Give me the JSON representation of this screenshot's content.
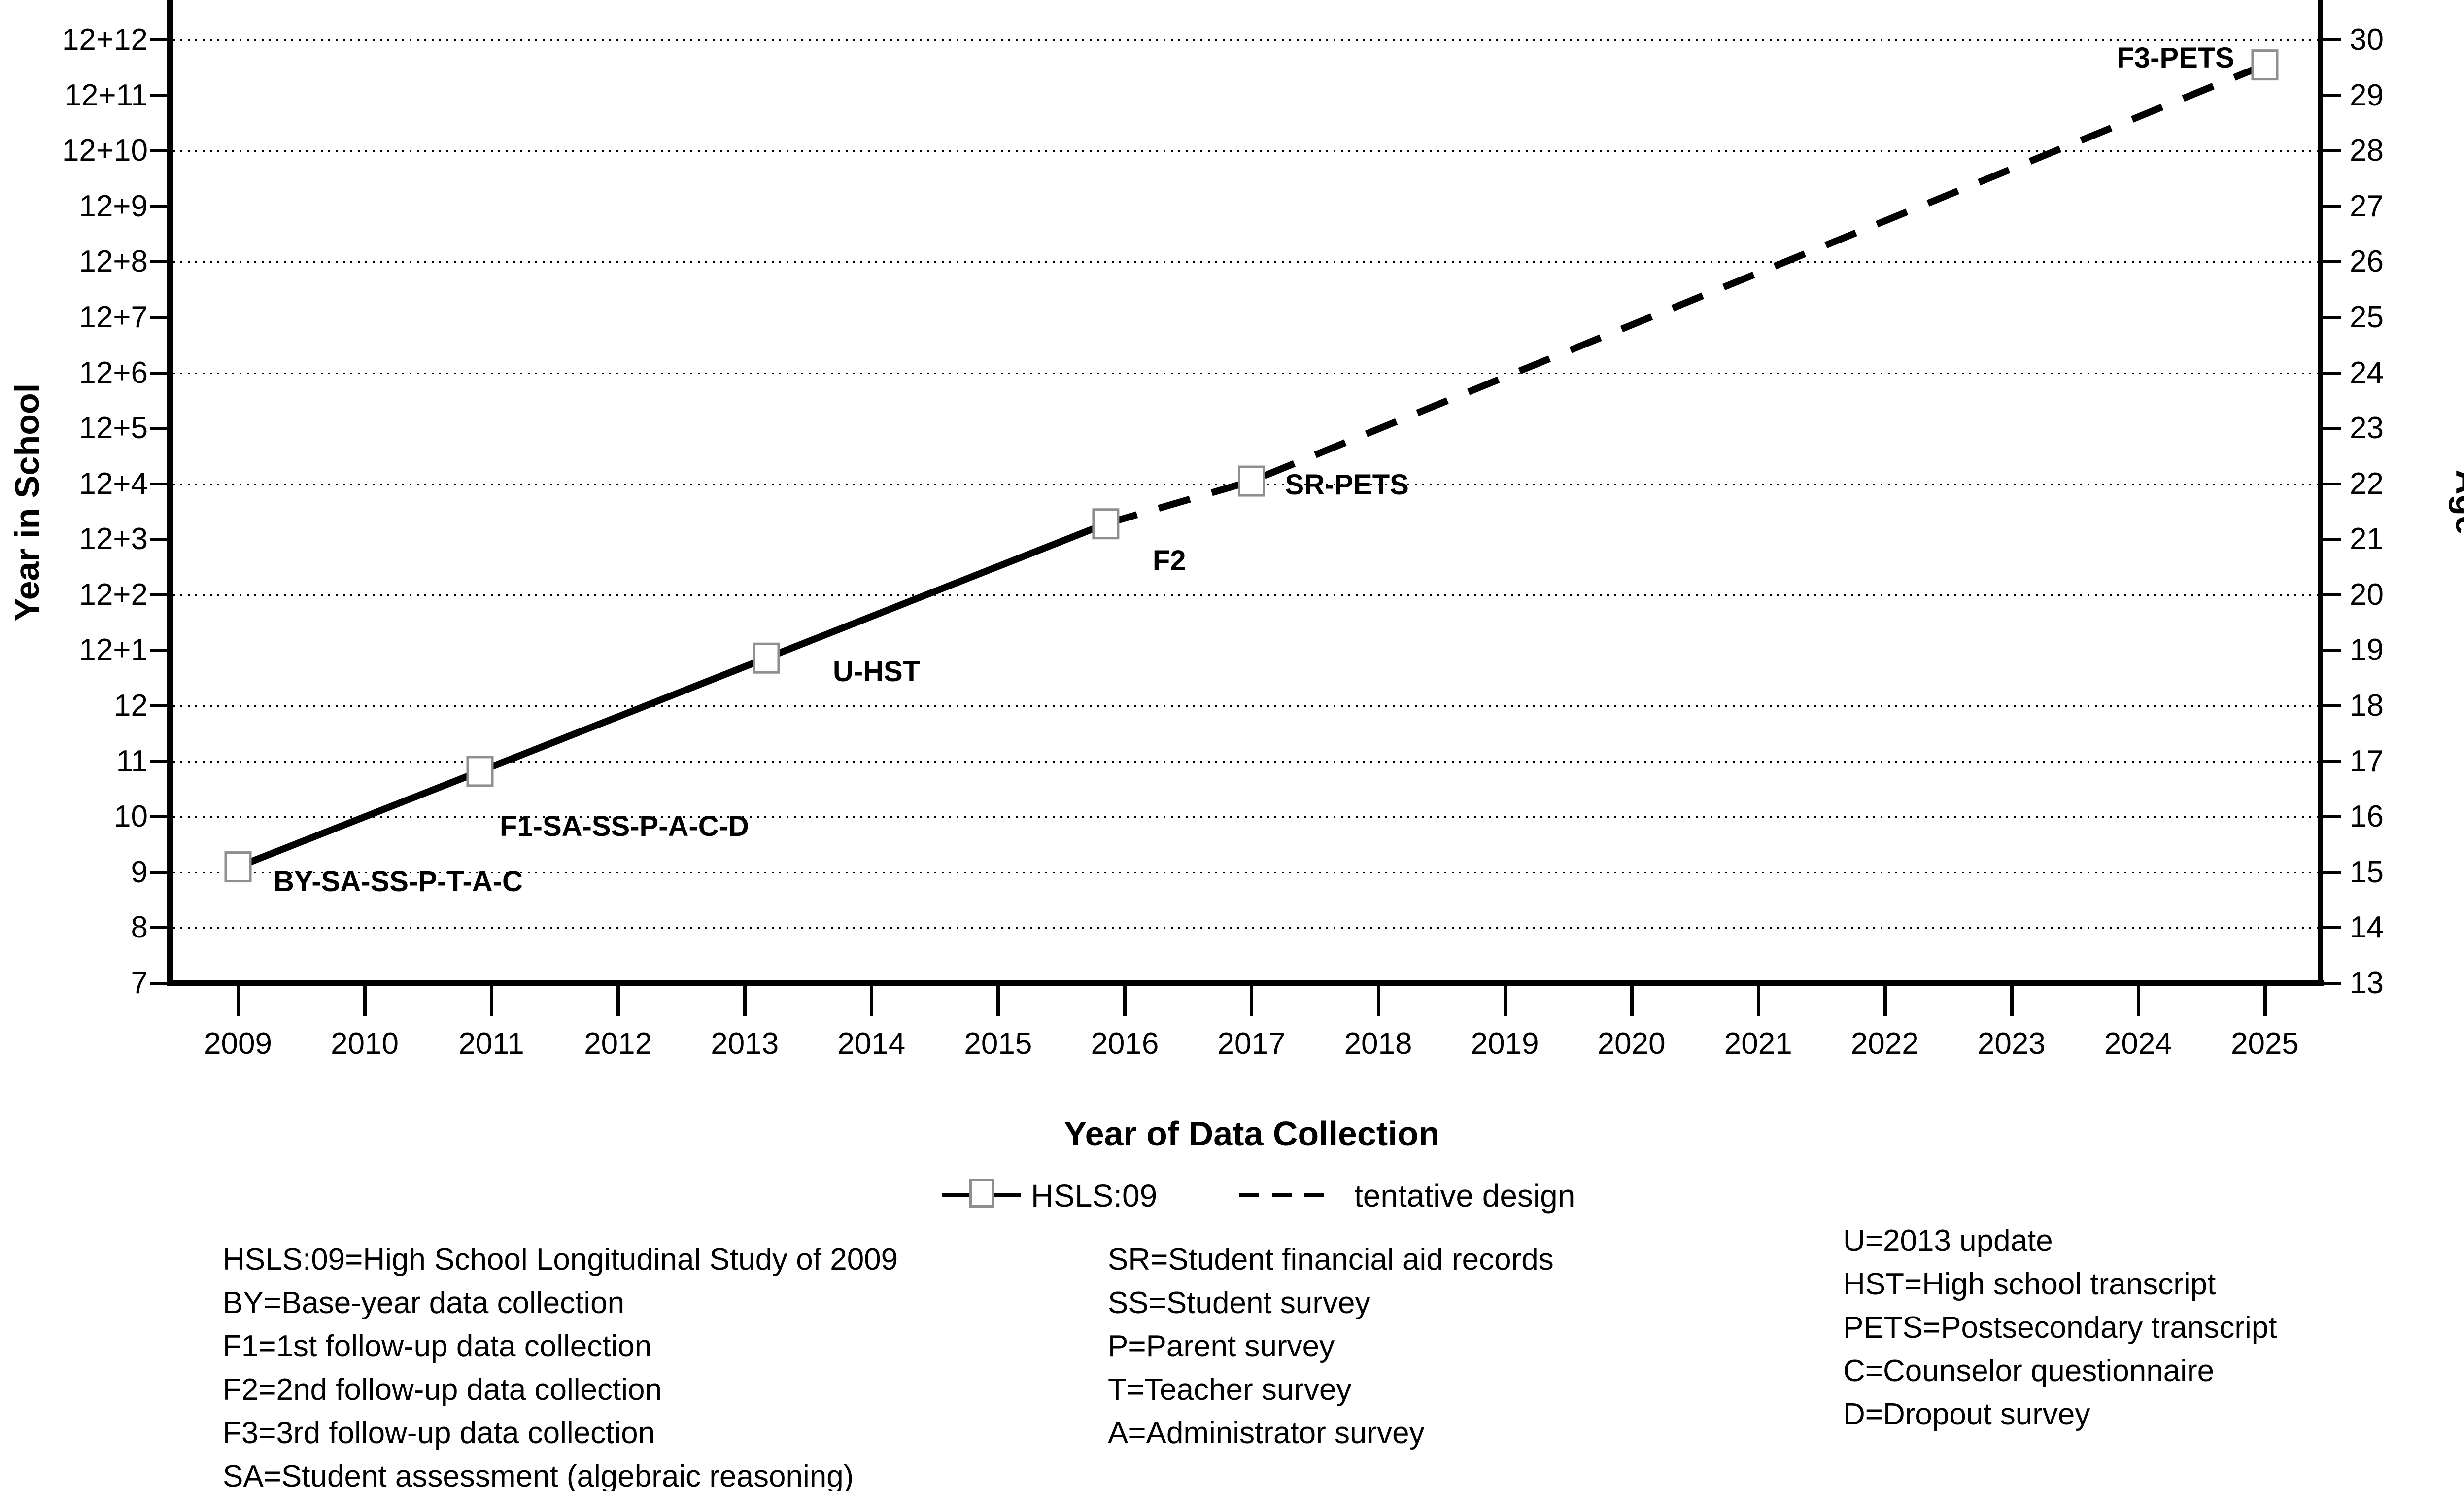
{
  "chart_data": {
    "type": "line",
    "xlabel": "Year of Data Collection",
    "ylabel_left": "Year in School",
    "ylabel_right": "Age",
    "x_ticks": [
      2009,
      2010,
      2011,
      2012,
      2013,
      2014,
      2015,
      2016,
      2017,
      2018,
      2019,
      2020,
      2021,
      2022,
      2023,
      2024,
      2025
    ],
    "rows": [
      {
        "school": "7",
        "age": "13",
        "value": 7,
        "gridline": false
      },
      {
        "school": "8",
        "age": "14",
        "value": 8,
        "gridline": true
      },
      {
        "school": "9",
        "age": "15",
        "value": 9,
        "gridline": true
      },
      {
        "school": "10",
        "age": "16",
        "value": 10,
        "gridline": true
      },
      {
        "school": "11",
        "age": "17",
        "value": 11,
        "gridline": true
      },
      {
        "school": "12",
        "age": "18",
        "value": 12,
        "gridline": true
      },
      {
        "school": "12+1",
        "age": "19",
        "value": 13,
        "gridline": false
      },
      {
        "school": "12+2",
        "age": "20",
        "value": 14,
        "gridline": true
      },
      {
        "school": "12+3",
        "age": "21",
        "value": 15,
        "gridline": false
      },
      {
        "school": "12+4",
        "age": "22",
        "value": 16,
        "gridline": true
      },
      {
        "school": "12+5",
        "age": "23",
        "value": 17,
        "gridline": false
      },
      {
        "school": "12+6",
        "age": "24",
        "value": 18,
        "gridline": true
      },
      {
        "school": "12+7",
        "age": "25",
        "value": 19,
        "gridline": false
      },
      {
        "school": "12+8",
        "age": "26",
        "value": 20,
        "gridline": true
      },
      {
        "school": "12+9",
        "age": "27",
        "value": 21,
        "gridline": false
      },
      {
        "school": "12+10",
        "age": "28",
        "value": 22,
        "gridline": true
      },
      {
        "school": "12+11",
        "age": "29",
        "value": 23,
        "gridline": false
      },
      {
        "school": "12+12",
        "age": "30",
        "value": 24,
        "gridline": true
      }
    ],
    "points": [
      {
        "label": "BY-SA-SS-P-T-A-C",
        "year": 2009.0,
        "grade_scale_value": 9.1,
        "age": 15.1
      },
      {
        "label": "F1-SA-SS-P-A-C-D",
        "year": 2010.91,
        "grade_scale_value": 10.82,
        "age": 16.8
      },
      {
        "label": "U-HST",
        "year": 2013.17,
        "grade_scale_value": 12.86,
        "age": 18.9
      },
      {
        "label": "F2",
        "year": 2015.85,
        "grade_scale_value": 15.28,
        "age": 21.3
      },
      {
        "label": "SR-PETS",
        "year": 2017.0,
        "grade_scale_value": 16.05,
        "age": 22.0
      },
      {
        "label": "F3-PETS",
        "year": 2025.0,
        "grade_scale_value": 23.55,
        "age": 29.6
      }
    ],
    "solid_segment_point_indices": [
      0,
      1,
      2,
      3
    ],
    "dashed_segment_point_indices": [
      3,
      4,
      5
    ],
    "legend": [
      {
        "label": "HSLS:09",
        "style": "solid-with-square-marker"
      },
      {
        "label": "tentative design",
        "style": "dashed"
      }
    ]
  },
  "footnotes": {
    "col1": [
      "HSLS:09=High School Longitudinal Study of 2009",
      "BY=Base-year data collection",
      "F1=1st follow-up data collection",
      "F2=2nd follow-up data collection",
      "F3=3rd follow-up data collection",
      "SA=Student assessment (algebraic reasoning)"
    ],
    "col2": [
      "SR=Student financial aid records",
      "SS=Student survey",
      "P=Parent survey",
      "T=Teacher survey",
      "A=Administrator survey"
    ],
    "col3": [
      "U=2013 update",
      "HST=High school transcript",
      "PETS=Postsecondary transcript",
      "C=Counselor questionnaire",
      "D=Dropout survey"
    ]
  },
  "colors": {
    "line": "#000000",
    "marker_border": "#8f8f8f",
    "marker_fill": "#ffffff",
    "text": "#000000",
    "background": "#ffffff"
  }
}
